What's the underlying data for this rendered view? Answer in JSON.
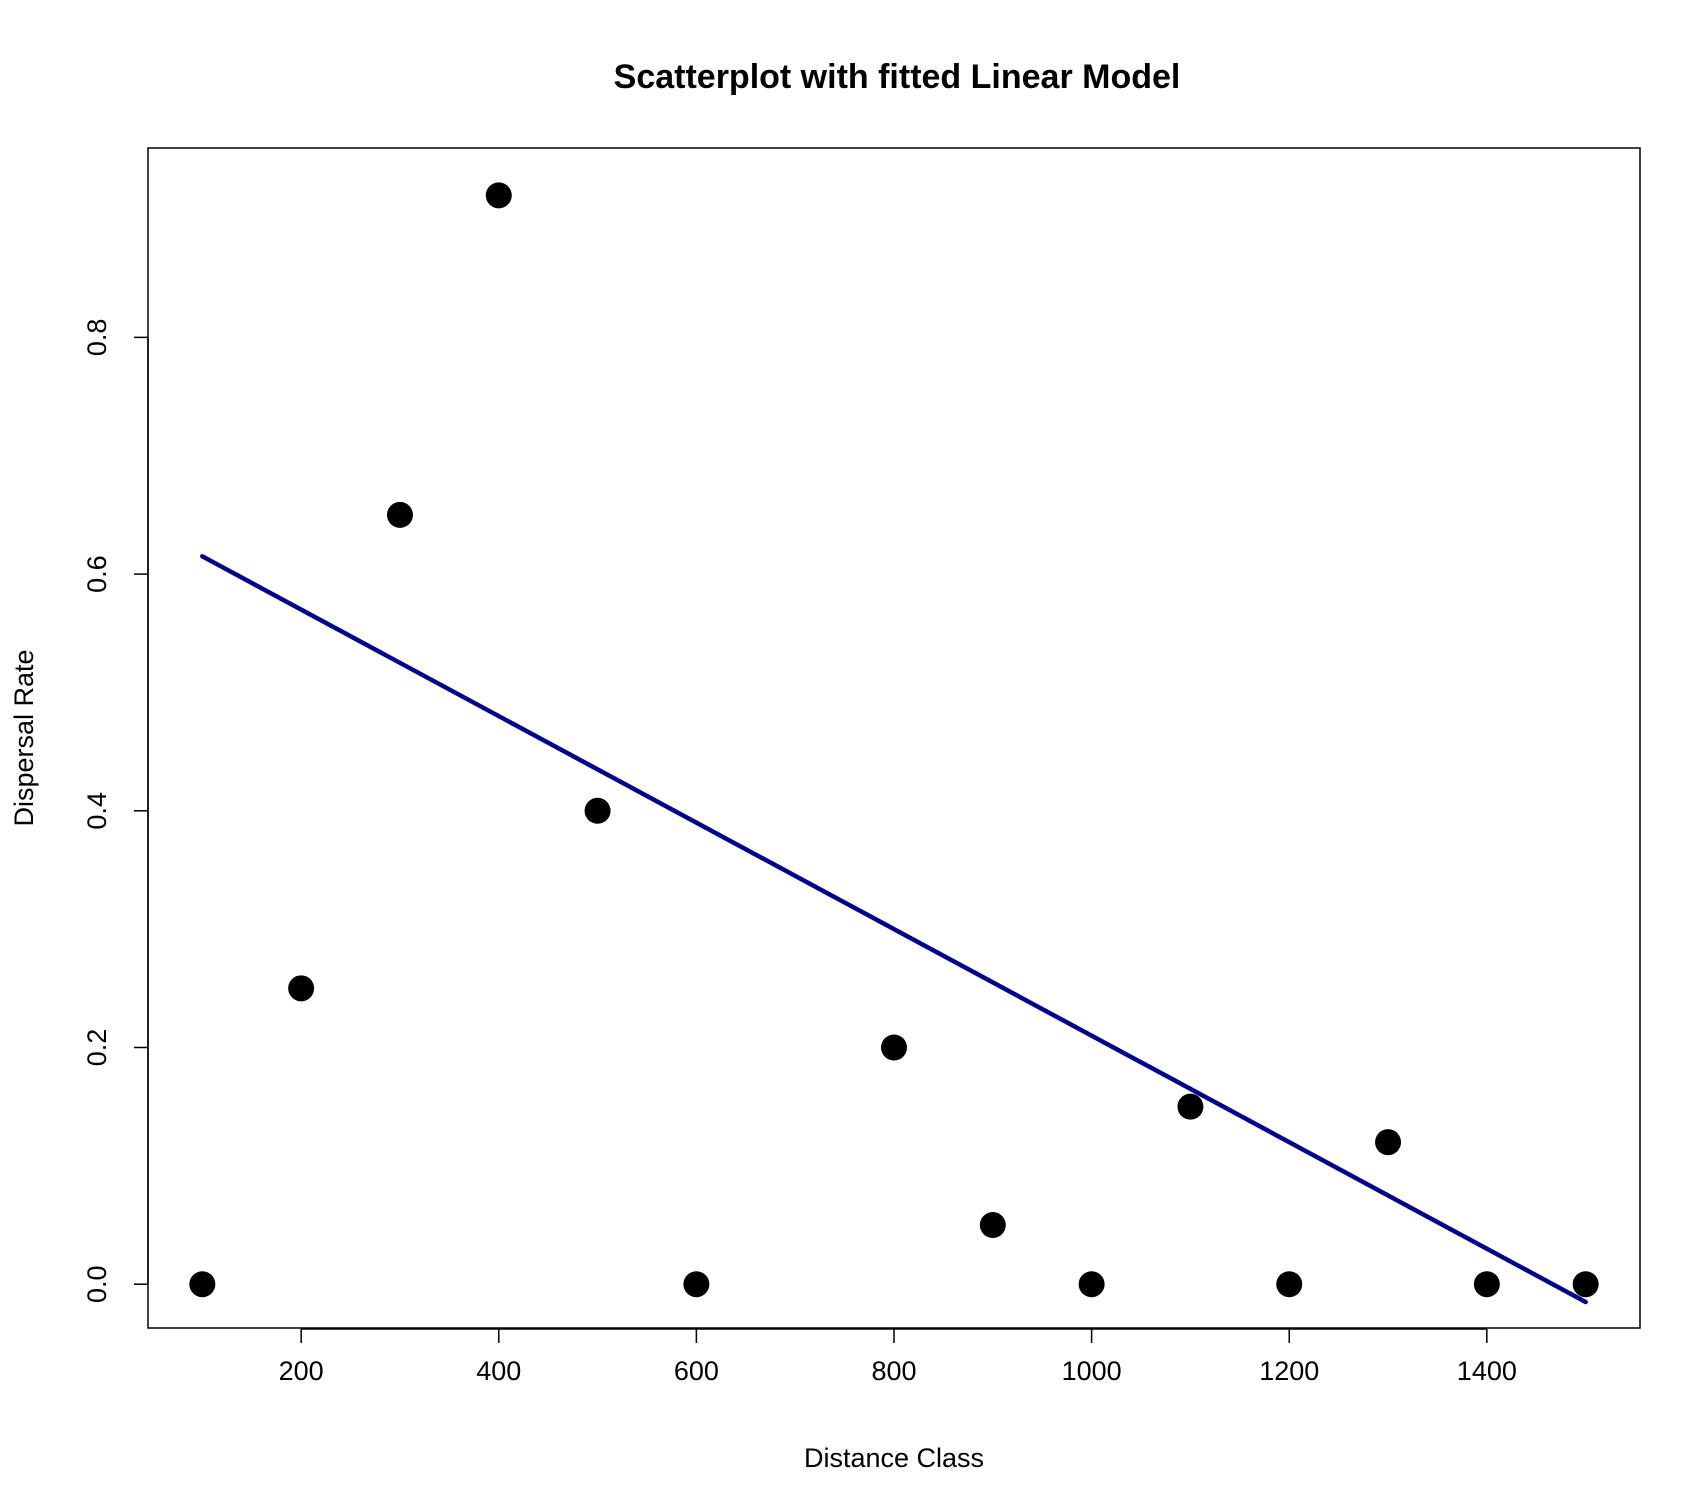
{
  "chart_data": {
    "type": "scatter",
    "title": "Scatterplot with fitted Linear Model",
    "xlabel": "Distance Class",
    "ylabel": "Dispersal Rate",
    "xlim": [
      45,
      1555
    ],
    "ylim": [
      -0.037,
      0.96
    ],
    "xticks": [
      200,
      400,
      600,
      800,
      1000,
      1200,
      1400
    ],
    "xtick_labels": [
      "200",
      "400",
      "600",
      "800",
      "1000",
      "1200",
      "1400"
    ],
    "yticks": [
      0.0,
      0.2,
      0.4,
      0.6,
      0.8
    ],
    "ytick_labels": [
      "0.0",
      "0.2",
      "0.4",
      "0.6",
      "0.8"
    ],
    "grid": false,
    "points": {
      "x": [
        100,
        200,
        300,
        400,
        500,
        600,
        800,
        900,
        1000,
        1100,
        1200,
        1300,
        1400,
        1500
      ],
      "y": [
        0.0,
        0.25,
        0.65,
        0.92,
        0.4,
        0.0,
        0.2,
        0.05,
        0.0,
        0.15,
        0.0,
        0.12,
        0.0,
        0.0
      ]
    },
    "fit_line": {
      "x": [
        100,
        1500
      ],
      "y": [
        0.615,
        -0.015
      ],
      "color": "#00008b"
    },
    "point_color": "#000000"
  }
}
